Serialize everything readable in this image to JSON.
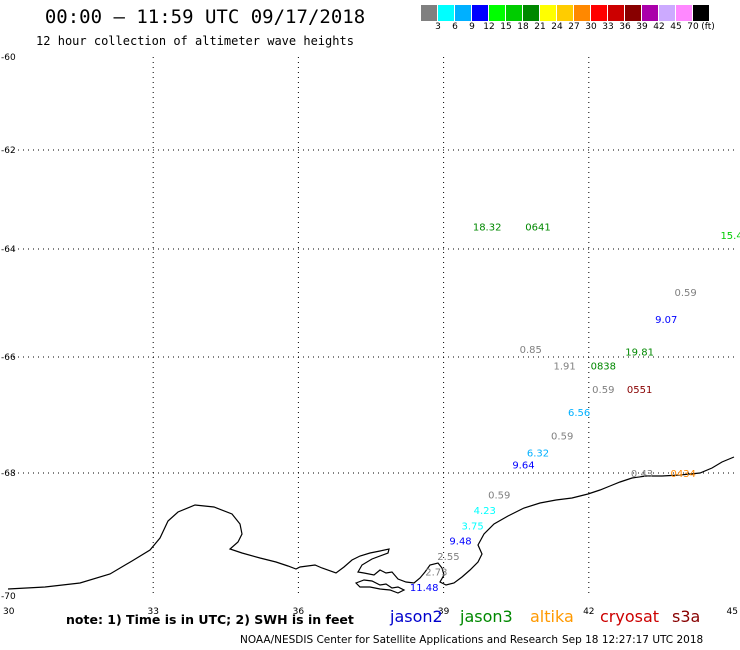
{
  "header": {
    "title": "00:00 – 11:59 UTC 09/17/2018",
    "subtitle": "12 hour collection of altimeter wave heights"
  },
  "color_scale": {
    "colors": [
      "#808080",
      "#00ffff",
      "#00b0ff",
      "#0000ff",
      "#00ff00",
      "#00cc00",
      "#008800",
      "#ffff00",
      "#ffcc00",
      "#ff8800",
      "#ff0000",
      "#cc0000",
      "#880000",
      "#aa00aa",
      "#ccaaff",
      "#ff88ff",
      "#000000"
    ],
    "labels": [
      "3",
      "6",
      "9",
      "12",
      "15",
      "18",
      "21",
      "24",
      "27",
      "30",
      "33",
      "36",
      "39",
      "42",
      "45",
      "70",
      "(ft)"
    ]
  },
  "axes": {
    "lon_ticks": [
      "30",
      "33",
      "36",
      "39",
      "42",
      "45"
    ],
    "lat_ticks": [
      "-60",
      "-62",
      "-64",
      "-66",
      "-68",
      "-70"
    ]
  },
  "observations": [
    {
      "text": "18.32",
      "lon": 39.9,
      "lat": -63.55,
      "color": "#008800"
    },
    {
      "text": "0641",
      "lon": 40.95,
      "lat": -63.55,
      "color": "#008800"
    },
    {
      "text": "15.4",
      "lon": 44.95,
      "lat": -63.72,
      "color": "#00cc00"
    },
    {
      "text": "0.59",
      "lon": 44.0,
      "lat": -64.8,
      "color": "#808080"
    },
    {
      "text": "9.07",
      "lon": 43.6,
      "lat": -65.3,
      "color": "#0000ff"
    },
    {
      "text": "0.85",
      "lon": 40.8,
      "lat": -65.85,
      "color": "#808080"
    },
    {
      "text": "19.81",
      "lon": 43.05,
      "lat": -65.9,
      "color": "#008800"
    },
    {
      "text": "1.91",
      "lon": 41.5,
      "lat": -66.15,
      "color": "#808080"
    },
    {
      "text": "0838",
      "lon": 42.3,
      "lat": -66.15,
      "color": "#008800"
    },
    {
      "text": "0.59",
      "lon": 42.3,
      "lat": -66.55,
      "color": "#808080"
    },
    {
      "text": "0551",
      "lon": 43.05,
      "lat": -66.55,
      "color": "#880000"
    },
    {
      "text": "6.56",
      "lon": 41.8,
      "lat": -66.95,
      "color": "#00b0ff"
    },
    {
      "text": "0.59",
      "lon": 41.45,
      "lat": -67.35,
      "color": "#808080"
    },
    {
      "text": "6.32",
      "lon": 40.95,
      "lat": -67.65,
      "color": "#00b0ff"
    },
    {
      "text": "9.64",
      "lon": 40.65,
      "lat": -67.85,
      "color": "#0000ff"
    },
    {
      "text": "0.43",
      "lon": 43.1,
      "lat": -68.0,
      "color": "#808080"
    },
    {
      "text": "0434",
      "lon": 43.95,
      "lat": -68.0,
      "color": "#ff8800"
    },
    {
      "text": "0.59",
      "lon": 40.15,
      "lat": -68.35,
      "color": "#808080"
    },
    {
      "text": "4.23",
      "lon": 39.85,
      "lat": -68.6,
      "color": "#00ffff"
    },
    {
      "text": "3.75",
      "lon": 39.6,
      "lat": -68.85,
      "color": "#00ffff"
    },
    {
      "text": "9.48",
      "lon": 39.35,
      "lat": -69.1,
      "color": "#0000ff"
    },
    {
      "text": "2.55",
      "lon": 39.1,
      "lat": -69.35,
      "color": "#808080"
    },
    {
      "text": "2.73",
      "lon": 38.85,
      "lat": -69.6,
      "color": "#808080"
    },
    {
      "text": "11.48",
      "lon": 38.6,
      "lat": -69.85,
      "color": "#0000ff"
    }
  ],
  "footer": {
    "note": "note: 1) Time is in UTC; 2) SWH is in feet",
    "satellites": [
      {
        "name": "jason2",
        "color": "#0000cc"
      },
      {
        "name": "jason3",
        "color": "#008800"
      },
      {
        "name": "altika",
        "color": "#ff9900"
      },
      {
        "name": "cryosat",
        "color": "#cc0000"
      },
      {
        "name": "s3a",
        "color": "#880000"
      }
    ],
    "credit": "NOAA/NESDIS Center for Satellite Applications and Research",
    "timestamp": "Sep 18 12:27:17 UTC 2018"
  }
}
